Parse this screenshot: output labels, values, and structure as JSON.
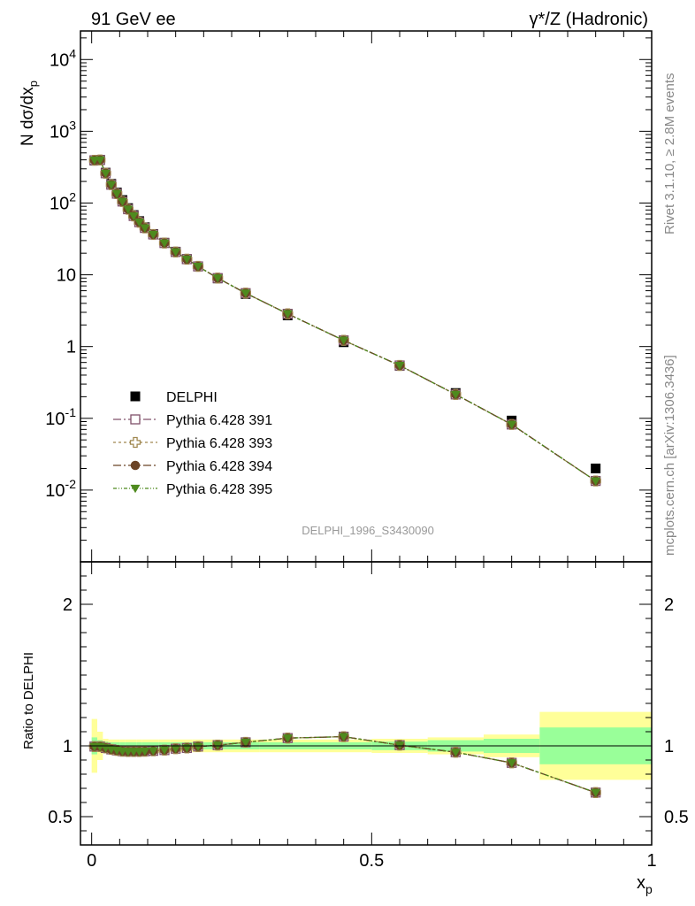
{
  "header": {
    "left": "91 GeV ee",
    "right": "γ*/Z (Hadronic)"
  },
  "side_labels": {
    "rivet": "Rivet 3.1.10, ≥ 2.8M events",
    "mcplots": "mcplots.cern.ch [arXiv:1306.3436]"
  },
  "analysis_id": "DELPHI_1996_S3430090",
  "chart_data": [
    {
      "type": "scatter",
      "panel": "main",
      "ylabel": "N dσ/dx_p",
      "yscale": "log",
      "ylim": [
        0.001,
        25000
      ],
      "xlim": [
        -0.02,
        1.0
      ],
      "y_ticks": [
        "10^-2",
        "10^-1",
        "1",
        "10",
        "10^2",
        "10^3",
        "10^4"
      ],
      "legend_position": "middle-left",
      "x": [
        0.005,
        0.015,
        0.025,
        0.035,
        0.045,
        0.055,
        0.065,
        0.075,
        0.085,
        0.095,
        0.11,
        0.13,
        0.15,
        0.17,
        0.19,
        0.225,
        0.275,
        0.35,
        0.45,
        0.55,
        0.65,
        0.75,
        0.9
      ],
      "series": [
        {
          "name": "DELPHI",
          "color": "#000000",
          "marker": "square-filled",
          "values": [
            390,
            400,
            265,
            185,
            140,
            110,
            85,
            68,
            56,
            46,
            37,
            28,
            21,
            16.6,
            13.1,
            8.9,
            5.4,
            2.72,
            1.15,
            0.54,
            0.225,
            0.093,
            0.02
          ]
        },
        {
          "name": "Pythia 6.428 391",
          "color": "#80506a",
          "marker": "square-open",
          "values": [
            395,
            398,
            260,
            180,
            135,
            105,
            82,
            66,
            54,
            45,
            36.5,
            27.7,
            20.8,
            16.5,
            13.1,
            9.0,
            5.55,
            2.86,
            1.22,
            0.545,
            0.215,
            0.082,
            0.0134
          ]
        },
        {
          "name": "Pythia 6.428 393",
          "color": "#a08850",
          "marker": "cross-open",
          "values": [
            395,
            398,
            260,
            180,
            135,
            105,
            82,
            66,
            54,
            45,
            36.5,
            27.7,
            20.8,
            16.5,
            13.1,
            9.0,
            5.55,
            2.86,
            1.22,
            0.545,
            0.215,
            0.082,
            0.0134
          ]
        },
        {
          "name": "Pythia 6.428 394",
          "color": "#6b4426",
          "marker": "circle-filled",
          "values": [
            395,
            398,
            260,
            180,
            135,
            105,
            82,
            66,
            54,
            45,
            36.5,
            27.7,
            20.8,
            16.5,
            13.1,
            9.0,
            5.55,
            2.86,
            1.22,
            0.545,
            0.215,
            0.082,
            0.0134
          ]
        },
        {
          "name": "Pythia 6.428 395",
          "color": "#4e8a1e",
          "marker": "triangle-down-filled",
          "values": [
            395,
            398,
            260,
            180,
            135,
            105,
            82,
            66,
            54,
            45,
            36.5,
            27.7,
            20.8,
            16.5,
            13.1,
            9.0,
            5.55,
            2.86,
            1.22,
            0.545,
            0.215,
            0.082,
            0.0134
          ]
        }
      ]
    },
    {
      "type": "line",
      "panel": "ratio",
      "ylabel": "Ratio to DELPHI",
      "xlabel": "x_p",
      "ylim": [
        0.3,
        2.3
      ],
      "xlim": [
        -0.02,
        1.0
      ],
      "y_ticks": [
        "0.5",
        "1",
        "2"
      ],
      "x_ticks": [
        "0",
        "0.5",
        "1"
      ],
      "x": [
        0.005,
        0.015,
        0.025,
        0.035,
        0.045,
        0.055,
        0.065,
        0.075,
        0.085,
        0.095,
        0.11,
        0.13,
        0.15,
        0.17,
        0.19,
        0.225,
        0.275,
        0.35,
        0.45,
        0.55,
        0.65,
        0.75,
        0.9
      ],
      "values": [
        0.995,
        0.995,
        0.985,
        0.975,
        0.968,
        0.962,
        0.96,
        0.96,
        0.96,
        0.962,
        0.965,
        0.97,
        0.98,
        0.985,
        0.995,
        1.005,
        1.025,
        1.055,
        1.065,
        1.005,
        0.955,
        0.88,
        0.67
      ],
      "uncertainty_bands": {
        "x_edges": [
          0.0,
          0.01,
          0.02,
          0.03,
          0.04,
          0.05,
          0.06,
          0.07,
          0.08,
          0.09,
          0.1,
          0.12,
          0.14,
          0.16,
          0.18,
          0.2,
          0.25,
          0.3,
          0.4,
          0.5,
          0.6,
          0.7,
          0.8,
          1.0
        ],
        "inner": [
          0.06,
          0.04,
          0.03,
          0.025,
          0.025,
          0.025,
          0.025,
          0.025,
          0.025,
          0.025,
          0.025,
          0.025,
          0.025,
          0.025,
          0.025,
          0.025,
          0.025,
          0.025,
          0.025,
          0.03,
          0.04,
          0.05,
          0.13
        ],
        "outer": [
          0.19,
          0.1,
          0.05,
          0.045,
          0.045,
          0.045,
          0.045,
          0.045,
          0.045,
          0.045,
          0.045,
          0.045,
          0.045,
          0.045,
          0.045,
          0.045,
          0.045,
          0.045,
          0.045,
          0.05,
          0.06,
          0.08,
          0.24
        ],
        "inner_color": "#99ff99",
        "outer_color": "#ffff99"
      }
    }
  ]
}
